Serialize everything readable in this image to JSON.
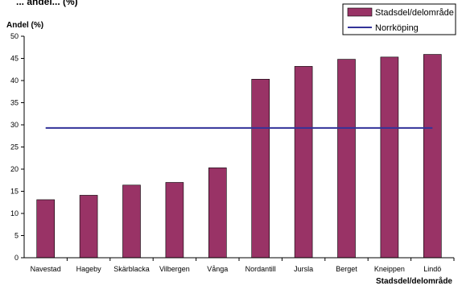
{
  "chart_data": {
    "type": "bar",
    "title": "... andel... (%)",
    "ylabel": "Andel (%)",
    "xlabel": "Stadsdel/delområde",
    "ylim": [
      0,
      50
    ],
    "yticks": [
      0,
      5,
      10,
      15,
      20,
      25,
      30,
      35,
      40,
      45,
      50
    ],
    "categories": [
      "Navestad",
      "Hageby",
      "Skärblacka",
      "Vilbergen",
      "Vånga",
      "Nordantill",
      "Jursla",
      "Berget",
      "Kneippen",
      "Lindö"
    ],
    "series": [
      {
        "name": "Stadsdel/delområde",
        "kind": "bar",
        "color": "#993366",
        "values": [
          13.1,
          14.1,
          16.4,
          17.0,
          20.3,
          40.3,
          43.2,
          44.8,
          45.3,
          45.9
        ]
      },
      {
        "name": "Norrköping",
        "kind": "reference-line",
        "color": "#333399",
        "value": 29.3
      }
    ],
    "legend": {
      "placement": "top-right"
    },
    "grid": false
  }
}
